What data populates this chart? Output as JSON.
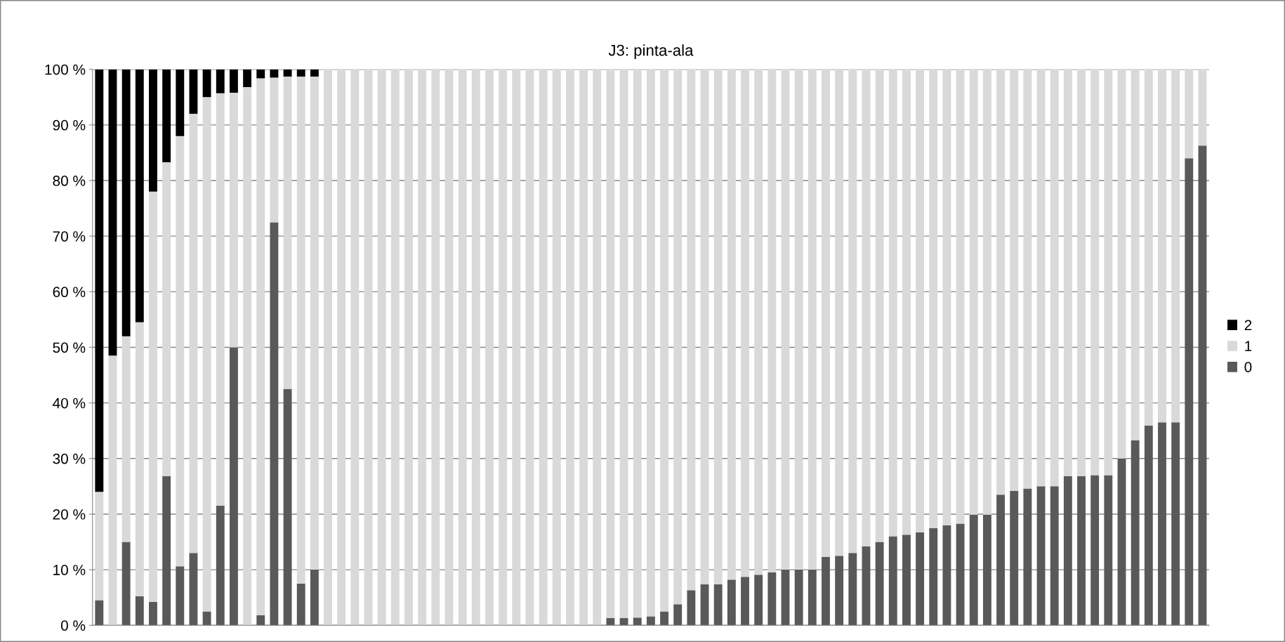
{
  "chart_data": {
    "type": "bar",
    "title": "J3: pinta-ala",
    "stacked": true,
    "categories": [
      null,
      null,
      null,
      null,
      null,
      null,
      null,
      null,
      null,
      null,
      null,
      null,
      null,
      null,
      null,
      null,
      null,
      null,
      null,
      null,
      null,
      null,
      null,
      null,
      null,
      null,
      null,
      null,
      null,
      null,
      null,
      null,
      null,
      null,
      null,
      null,
      null,
      null,
      null,
      null,
      null,
      null,
      null,
      null,
      null,
      null,
      null,
      null,
      null,
      null,
      null,
      null,
      null,
      null,
      null,
      null,
      null,
      null,
      null,
      null,
      null,
      null,
      null,
      null,
      null,
      null,
      null,
      null,
      null,
      null,
      null,
      null,
      null,
      null,
      null,
      null,
      null,
      null,
      null,
      null,
      null,
      null,
      null
    ],
    "series": [
      {
        "name": "0",
        "color": "#595959",
        "values": [
          4.5,
          0,
          15,
          5.2,
          4.2,
          26.8,
          10.6,
          13,
          2.5,
          21.5,
          50,
          0,
          1.8,
          72.5,
          42.5,
          7.5,
          10,
          0,
          0,
          0,
          0,
          0,
          0,
          0,
          0,
          0,
          0,
          0,
          0,
          0,
          0,
          0,
          0,
          0,
          0,
          0,
          0,
          0,
          1.3,
          1.3,
          1.4,
          1.6,
          2.5,
          3.8,
          6.3,
          7.4,
          7.4,
          8.2,
          8.7,
          9.1,
          9.5,
          10,
          10,
          10,
          12.3,
          12.5,
          13,
          14.2,
          15,
          16,
          16.3,
          16.7,
          17.5,
          18,
          18.3,
          19.9,
          19.9,
          23.5,
          24.2,
          24.6,
          25,
          25,
          26.8,
          26.8,
          27,
          27,
          30,
          33.3,
          35.9,
          36.5,
          36.5,
          84,
          86.3
        ]
      },
      {
        "name": "1",
        "color": "#d9d9d9",
        "values": [
          19.5,
          48.5,
          37,
          49.3,
          73.8,
          56.5,
          77.4,
          79,
          92.5,
          74.2,
          45.8,
          96.8,
          96.6,
          26,
          56.2,
          91.2,
          88.7,
          100,
          100,
          100,
          100,
          100,
          100,
          100,
          100,
          100,
          100,
          100,
          100,
          100,
          100,
          100,
          100,
          100,
          100,
          100,
          100,
          100,
          98.7,
          98.7,
          98.6,
          98.4,
          97.5,
          96.2,
          93.7,
          92.6,
          92.6,
          91.8,
          91.3,
          90.9,
          90.5,
          90,
          90,
          90,
          87.7,
          87.5,
          87,
          85.8,
          85,
          84,
          83.7,
          83.3,
          82.5,
          82,
          81.7,
          80.1,
          80.1,
          76.5,
          75.8,
          75.4,
          75,
          75,
          73.2,
          73.2,
          73,
          73,
          70,
          66.7,
          64.1,
          63.5,
          63.5,
          16,
          13.7
        ]
      },
      {
        "name": "2",
        "color": "#000000",
        "values": [
          76,
          51.5,
          48,
          45.5,
          22,
          16.7,
          12,
          8,
          5,
          4.3,
          4.2,
          3.2,
          1.6,
          1.5,
          1.3,
          1.3,
          1.3,
          0,
          0,
          0,
          0,
          0,
          0,
          0,
          0,
          0,
          0,
          0,
          0,
          0,
          0,
          0,
          0,
          0,
          0,
          0,
          0,
          0,
          0,
          0,
          0,
          0,
          0,
          0,
          0,
          0,
          0,
          0,
          0,
          0,
          0,
          0,
          0,
          0,
          0,
          0,
          0,
          0,
          0,
          0,
          0,
          0,
          0,
          0,
          0,
          0,
          0,
          0,
          0,
          0,
          0,
          0,
          0,
          0,
          0,
          0,
          0,
          0,
          0,
          0,
          0,
          0,
          0
        ]
      }
    ],
    "ylim": [
      0,
      100
    ],
    "yticks": [
      {
        "value": 0,
        "label": "0 %"
      },
      {
        "value": 10,
        "label": "10 %"
      },
      {
        "value": 20,
        "label": "20 %"
      },
      {
        "value": 30,
        "label": "30 %"
      },
      {
        "value": 40,
        "label": "40 %"
      },
      {
        "value": 50,
        "label": "50 %"
      },
      {
        "value": 60,
        "label": "60 %"
      },
      {
        "value": 70,
        "label": "70 %"
      },
      {
        "value": 80,
        "label": "80 %"
      },
      {
        "value": 90,
        "label": "90 %"
      },
      {
        "value": 100,
        "label": "100 %"
      }
    ],
    "grid": "y",
    "legend": "right"
  }
}
